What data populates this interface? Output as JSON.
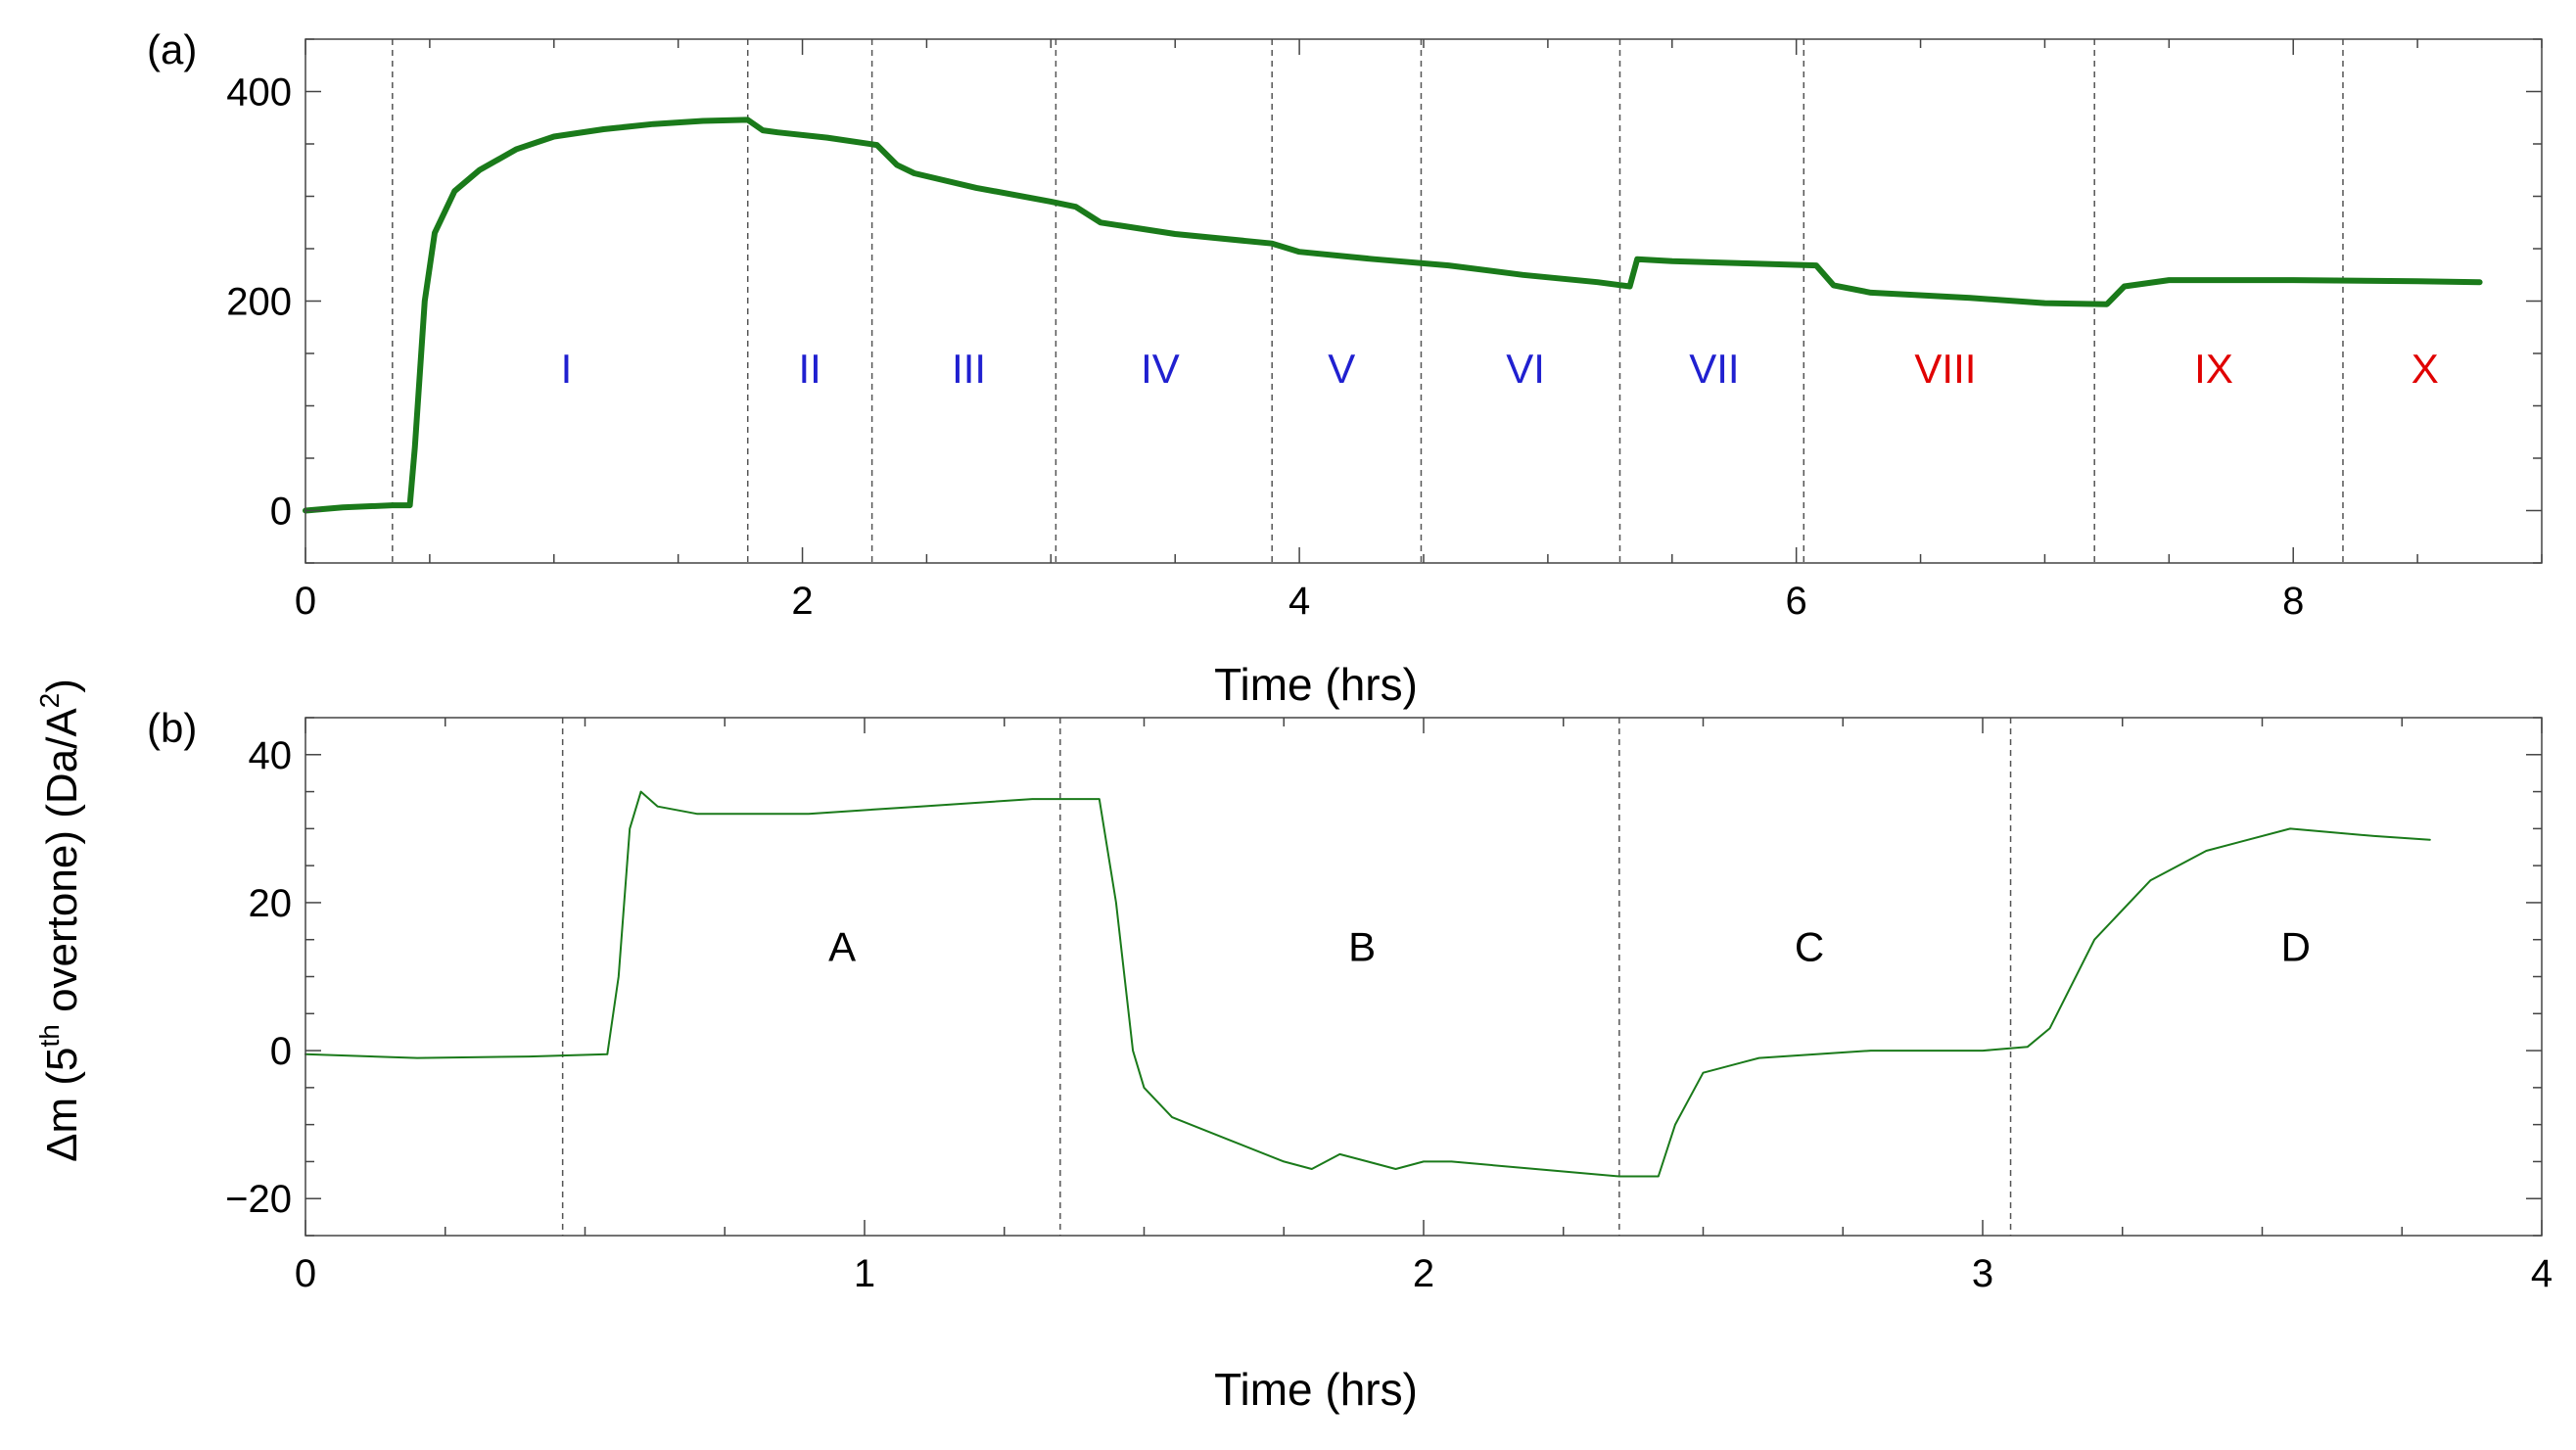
{
  "shared": {
    "ylabel_main": "Δm (5",
    "ylabel_sup": "th",
    "ylabel_mid": " overtone) (Da/A",
    "ylabel_sup2": "2",
    "ylabel_end": ")"
  },
  "chart_data": [
    {
      "panel_label": "(a)",
      "type": "line",
      "xlabel": "Time (hrs)",
      "xlim": [
        0,
        9
      ],
      "ylim": [
        -50,
        450
      ],
      "xticks": [
        0,
        2,
        4,
        6,
        8
      ],
      "yticks": [
        0,
        200,
        400
      ],
      "grid": false,
      "line_color": "#1a7a1a",
      "line_width": "thick",
      "vlines": [
        0.35,
        1.78,
        2.28,
        3.02,
        3.89,
        4.49,
        5.29,
        6.03,
        7.2,
        8.2
      ],
      "regions": [
        {
          "label": "I",
          "x": 1.05,
          "color": "#2020d0"
        },
        {
          "label": "II",
          "x": 2.03,
          "color": "#2020d0"
        },
        {
          "label": "III",
          "x": 2.67,
          "color": "#2020d0"
        },
        {
          "label": "IV",
          "x": 3.44,
          "color": "#2020d0"
        },
        {
          "label": "V",
          "x": 4.17,
          "color": "#2020d0"
        },
        {
          "label": "VI",
          "x": 4.91,
          "color": "#2020d0"
        },
        {
          "label": "VII",
          "x": 5.67,
          "color": "#2020d0"
        },
        {
          "label": "VIII",
          "x": 6.6,
          "color": "#e00000"
        },
        {
          "label": "IX",
          "x": 7.68,
          "color": "#e00000"
        },
        {
          "label": "X",
          "x": 8.53,
          "color": "#e00000"
        }
      ],
      "region_label_y": 135,
      "x": [
        0,
        0.15,
        0.35,
        0.42,
        0.44,
        0.48,
        0.52,
        0.6,
        0.7,
        0.85,
        1.0,
        1.2,
        1.4,
        1.6,
        1.78,
        1.84,
        1.9,
        2.1,
        2.3,
        2.38,
        2.45,
        2.7,
        3.0,
        3.1,
        3.2,
        3.5,
        3.89,
        4.0,
        4.3,
        4.6,
        4.9,
        5.2,
        5.33,
        5.36,
        5.5,
        5.8,
        6.08,
        6.15,
        6.3,
        6.7,
        7.0,
        7.25,
        7.32,
        7.5,
        8.0,
        8.5,
        8.75
      ],
      "y": [
        0,
        3,
        5,
        5,
        60,
        200,
        265,
        305,
        325,
        345,
        357,
        364,
        369,
        372,
        373,
        363,
        361,
        356,
        349,
        330,
        322,
        308,
        295,
        290,
        275,
        264,
        255,
        247,
        240,
        234,
        225,
        218,
        214,
        240,
        238,
        236,
        234,
        215,
        208,
        203,
        198,
        197,
        214,
        220,
        220,
        219,
        218
      ]
    },
    {
      "panel_label": "(b)",
      "type": "line",
      "xlabel": "Time (hrs)",
      "xlim": [
        0,
        4
      ],
      "ylim": [
        -25,
        45
      ],
      "xticks": [
        0,
        1,
        2,
        3,
        4
      ],
      "yticks": [
        -20,
        0,
        20,
        40
      ],
      "grid": false,
      "line_color": "#1a7a1a",
      "line_width": "thin",
      "vlines": [
        0.46,
        1.35,
        2.35,
        3.05
      ],
      "regions": [
        {
          "label": "A",
          "x": 0.96,
          "color": "#000000"
        },
        {
          "label": "B",
          "x": 1.89,
          "color": "#000000"
        },
        {
          "label": "C",
          "x": 2.69,
          "color": "#000000"
        },
        {
          "label": "D",
          "x": 3.56,
          "color": "#000000"
        }
      ],
      "region_label_y": 14,
      "x": [
        0,
        0.2,
        0.4,
        0.54,
        0.56,
        0.58,
        0.6,
        0.63,
        0.7,
        0.9,
        1.1,
        1.3,
        1.42,
        1.45,
        1.48,
        1.5,
        1.55,
        1.65,
        1.75,
        1.8,
        1.85,
        1.9,
        1.95,
        2.0,
        2.05,
        2.2,
        2.35,
        2.42,
        2.45,
        2.5,
        2.6,
        2.8,
        3.0,
        3.08,
        3.12,
        3.2,
        3.3,
        3.4,
        3.55,
        3.7,
        3.8
      ],
      "y": [
        -0.5,
        -1,
        -0.8,
        -0.5,
        10,
        30,
        35,
        33,
        32,
        32,
        33,
        34,
        34,
        20,
        0,
        -5,
        -9,
        -12,
        -15,
        -16,
        -14,
        -15,
        -16,
        -15,
        -15,
        -16,
        -17,
        -17,
        -10,
        -3,
        -1,
        0,
        0,
        0.5,
        3,
        15,
        23,
        27,
        30,
        29,
        28.5
      ]
    }
  ]
}
